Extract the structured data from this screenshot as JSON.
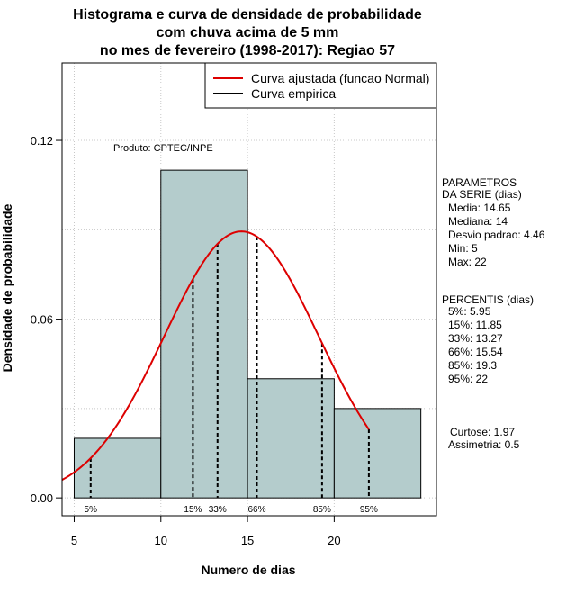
{
  "chart_data": {
    "type": "histogram",
    "title_lines": [
      "Histograma e curva de densidade de probabilidade",
      "com chuva acima de 5 mm",
      "no mes de fevereiro (1998-2017): Regiao 57"
    ],
    "xlabel": "Numero de dias",
    "ylabel": "Densidade de probabilidade",
    "xlim": [
      4.3,
      25.9
    ],
    "ylim": [
      -0.006,
      0.146
    ],
    "xticks": [
      5,
      10,
      15,
      20
    ],
    "yticks": [
      0.0,
      0.06,
      0.12
    ],
    "ytick_labels": [
      "0.00",
      "0.06",
      "0.12"
    ],
    "bins": [
      {
        "from": 5,
        "to": 10,
        "density": 0.02
      },
      {
        "from": 10,
        "to": 15,
        "density": 0.11
      },
      {
        "from": 15,
        "to": 20,
        "density": 0.04
      },
      {
        "from": 20,
        "to": 25,
        "density": 0.03
      }
    ],
    "fit_curve": {
      "name": "Curva ajustada (funcao Normal)",
      "mean": 14.65,
      "sd": 4.46,
      "from": 4.3,
      "to": 22,
      "color": "#dd0000"
    },
    "empirical_curve": {
      "name": "Curva empirica",
      "color": "#000000"
    },
    "percentile_lines": [
      {
        "label": "5%",
        "x": 5.95
      },
      {
        "label": "15%",
        "x": 11.85
      },
      {
        "label": "33%",
        "x": 13.27
      },
      {
        "label": "66%",
        "x": 15.54
      },
      {
        "label": "85%",
        "x": 19.3
      },
      {
        "label": "95%",
        "x": 22
      }
    ],
    "legend_position": "top-right",
    "grid": true,
    "bar_color": "#b4cccc",
    "annotation": "Produto: CPTEC/INPE",
    "side_panel": {
      "parametros_title": [
        "PARAMETROS",
        "DA SERIE (dias)"
      ],
      "parametros": [
        "Media: 14.65",
        "Mediana: 14",
        "Desvio padrao: 4.46",
        "Min: 5",
        "Max: 22"
      ],
      "percentis_title": "PERCENTIS (dias)",
      "percentis": [
        "5%: 5.95",
        "15%: 11.85",
        "33%: 13.27",
        "66%: 15.54",
        "85%: 19.3",
        "95%: 22"
      ],
      "shape": [
        "Curtose: 1.97",
        "Assimetria: 0.5"
      ]
    }
  }
}
